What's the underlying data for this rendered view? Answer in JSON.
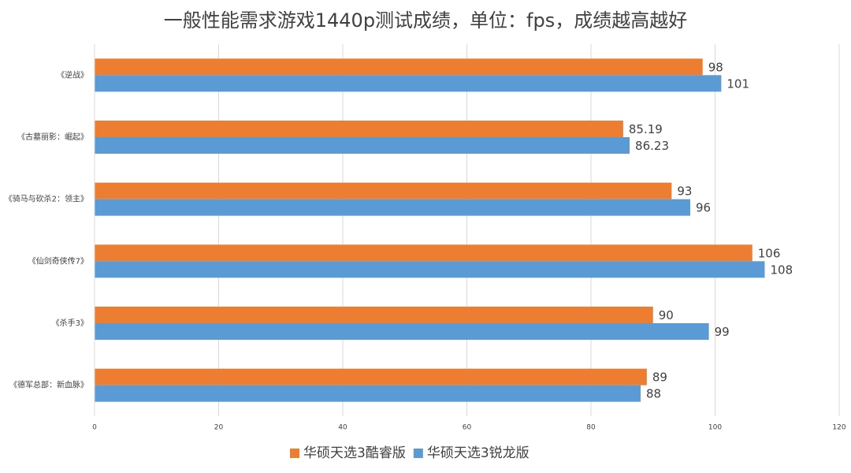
{
  "chart_data": {
    "type": "hbar",
    "title": "一般性能需求游戏1440p测试成绩，单位：fps，成绩越高越好",
    "categories": [
      "《逆战》",
      "《古墓丽影：崛起》",
      "《骑马与砍杀2：领主》",
      "《仙剑奇侠传7》",
      "《杀手3》",
      "《德军总部：新血脉》"
    ],
    "series": [
      {
        "name": "华硕天选3酷睿版",
        "color": "#ed7d31",
        "values": [
          98,
          85.19,
          93,
          106,
          90,
          89
        ]
      },
      {
        "name": "华硕天选3锐龙版",
        "color": "#5b9bd5",
        "values": [
          101,
          86.23,
          96,
          108,
          99,
          88
        ]
      }
    ],
    "xlim": [
      0,
      120
    ],
    "xticks": [
      0,
      20,
      40,
      60,
      80,
      100,
      120
    ],
    "grid": true,
    "legend": "bottom"
  }
}
